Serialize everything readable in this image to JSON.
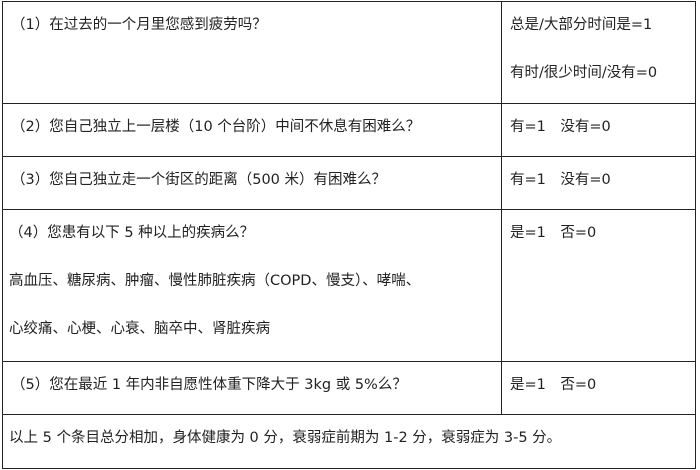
{
  "rows": [
    {
      "question": "（1）在过去的一个月里您感到疲劳吗？",
      "answers": [
        "总是/大部分时间是=1",
        "有时/很少时间/没有=0"
      ]
    },
    {
      "question": "（2）您自己独立上一层楼（10 个台阶）中间不休息有困难么？",
      "answers": [
        "有=1　没有=0"
      ]
    },
    {
      "question": "（3）您自己独立走一个街区的距离（500 米）有困难么？",
      "answers": [
        "有=1　没有=0"
      ]
    },
    {
      "question": "（4）您患有以下 5 种以上的疾病么？",
      "details": [
        "高血压、糖尿病、肿瘤、慢性肺脏疾病（COPD、慢支）、哮喘、",
        "心绞痛、心梗、心衰、脑卒中、肾脏疾病"
      ],
      "answers": [
        "是=1　否=0"
      ]
    },
    {
      "question": "（5）您在最近 1 年内非自愿性体重下降大于 3kg 或 5%么？",
      "answers": [
        "是=1　否=0"
      ]
    }
  ],
  "summary": "以上 5 个条目总分相加，身体健康为 0 分，衰弱症前期为 1-2 分，衰弱症为 3-5 分。"
}
